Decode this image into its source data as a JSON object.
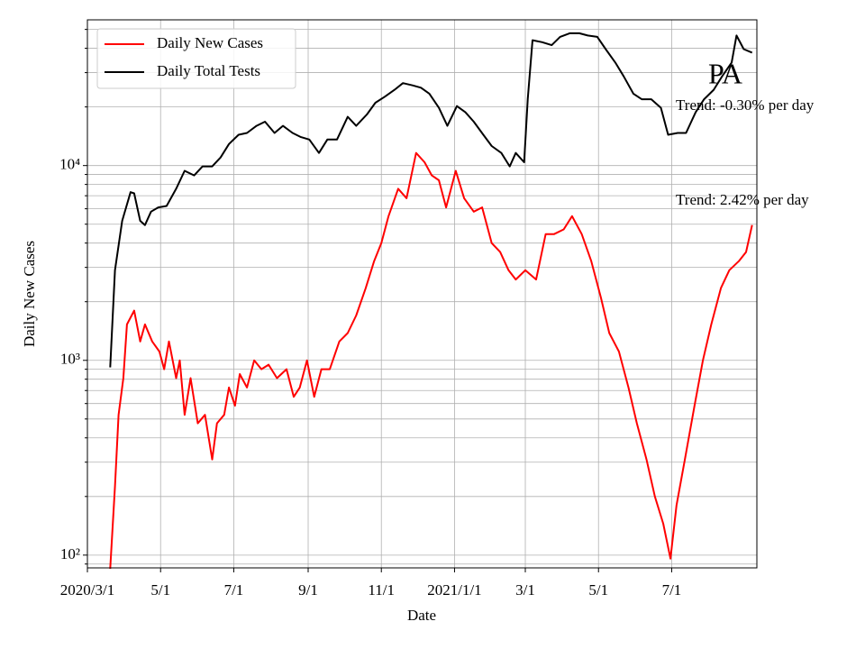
{
  "chart_data": {
    "type": "line",
    "title": "PA",
    "xlabel": "Date",
    "ylabel": "Daily New Cases",
    "annotations": [
      "Trend: -0.30% per day",
      "Trend: 2.42% per day"
    ],
    "log_y": true,
    "grid": true,
    "legend": "upper left",
    "xlim": [
      "2020-03-01",
      "2021-09-10"
    ],
    "xticks": [
      {
        "value": "2020-03-01",
        "label": "2020/3/1"
      },
      {
        "value": "2020-05-01",
        "label": "5/1"
      },
      {
        "value": "2020-07-01",
        "label": "7/1"
      },
      {
        "value": "2020-09-01",
        "label": "9/1"
      },
      {
        "value": "2020-11-01",
        "label": "11/1"
      },
      {
        "value": "2021-01-01",
        "label": "2021/1/1"
      },
      {
        "value": "2021-03-01",
        "label": "3/1"
      },
      {
        "value": "2021-05-01",
        "label": "5/1"
      },
      {
        "value": "2021-07-01",
        "label": "7/1"
      }
    ],
    "ylim": [
      86,
      56000
    ],
    "yticks": [
      {
        "value": 100,
        "label": "10²"
      },
      {
        "value": 1000,
        "label": "10³"
      },
      {
        "value": 10000,
        "label": "10⁴"
      }
    ],
    "yminor": [
      90,
      200,
      300,
      400,
      500,
      600,
      700,
      800,
      900,
      2000,
      3000,
      4000,
      5000,
      6000,
      7000,
      8000,
      9000,
      20000,
      30000,
      40000,
      50000
    ],
    "series": [
      {
        "name": "Daily New Cases",
        "color": "#ff0000",
        "x": [
          "2020-03-20",
          "2020-03-24",
          "2020-03-27",
          "2020-03-31",
          "2020-04-03",
          "2020-04-09",
          "2020-04-14",
          "2020-04-18",
          "2020-04-24",
          "2020-04-30",
          "2020-05-04",
          "2020-05-08",
          "2020-05-14",
          "2020-05-17",
          "2020-05-21",
          "2020-05-26",
          "2020-06-01",
          "2020-06-07",
          "2020-06-13",
          "2020-06-17",
          "2020-06-23",
          "2020-06-27",
          "2020-07-02",
          "2020-07-06",
          "2020-07-12",
          "2020-07-18",
          "2020-07-24",
          "2020-07-30",
          "2020-08-06",
          "2020-08-14",
          "2020-08-20",
          "2020-08-25",
          "2020-08-31",
          "2020-09-06",
          "2020-09-12",
          "2020-09-19",
          "2020-09-27",
          "2020-10-04",
          "2020-10-11",
          "2020-10-19",
          "2020-10-26",
          "2020-11-01",
          "2020-11-07",
          "2020-11-15",
          "2020-11-22",
          "2020-11-30",
          "2020-12-07",
          "2020-12-13",
          "2020-12-19",
          "2020-12-25",
          "2021-01-02",
          "2021-01-09",
          "2021-01-17",
          "2021-01-24",
          "2021-02-01",
          "2021-02-08",
          "2021-02-15",
          "2021-02-21",
          "2021-03-01",
          "2021-03-10",
          "2021-03-18",
          "2021-03-25",
          "2021-04-02",
          "2021-04-09",
          "2021-04-17",
          "2021-04-25",
          "2021-05-03",
          "2021-05-10",
          "2021-05-18",
          "2021-05-26",
          "2021-06-02",
          "2021-06-10",
          "2021-06-17",
          "2021-06-24",
          "2021-06-30",
          "2021-07-05",
          "2021-07-12",
          "2021-07-20",
          "2021-07-27",
          "2021-08-03",
          "2021-08-11",
          "2021-08-18",
          "2021-08-26",
          "2021-09-01",
          "2021-09-06"
        ],
        "values": [
          85,
          225,
          525,
          810,
          1530,
          1800,
          1250,
          1530,
          1250,
          1110,
          900,
          1250,
          810,
          1000,
          525,
          810,
          475,
          525,
          310,
          475,
          525,
          725,
          585,
          850,
          725,
          1000,
          900,
          950,
          810,
          900,
          650,
          725,
          1000,
          650,
          900,
          900,
          1250,
          1380,
          1700,
          2350,
          3230,
          4000,
          5500,
          7600,
          6800,
          11600,
          10400,
          8900,
          8400,
          6100,
          9400,
          6800,
          5800,
          6100,
          4000,
          3600,
          2900,
          2600,
          2900,
          2600,
          4450,
          4450,
          4700,
          5500,
          4450,
          3230,
          2100,
          1380,
          1110,
          725,
          475,
          310,
          200,
          145,
          96,
          180,
          310,
          585,
          1000,
          1530,
          2350,
          2900,
          3230,
          3600,
          4950
        ]
      },
      {
        "name": "Daily Total Tests",
        "color": "#000000",
        "x": [
          "2020-03-20",
          "2020-03-24",
          "2020-03-30",
          "2020-04-06",
          "2020-04-09",
          "2020-04-14",
          "2020-04-18",
          "2020-04-23",
          "2020-04-29",
          "2020-05-06",
          "2020-05-14",
          "2020-05-21",
          "2020-05-29",
          "2020-06-05",
          "2020-06-13",
          "2020-06-20",
          "2020-06-27",
          "2020-07-05",
          "2020-07-12",
          "2020-07-20",
          "2020-07-27",
          "2020-08-04",
          "2020-08-11",
          "2020-08-19",
          "2020-08-26",
          "2020-09-02",
          "2020-09-10",
          "2020-09-17",
          "2020-09-25",
          "2020-10-04",
          "2020-10-11",
          "2020-10-20",
          "2020-10-27",
          "2020-11-04",
          "2020-11-12",
          "2020-11-19",
          "2020-11-27",
          "2020-12-04",
          "2020-12-11",
          "2020-12-19",
          "2020-12-26",
          "2021-01-03",
          "2021-01-10",
          "2021-01-17",
          "2021-01-25",
          "2021-02-01",
          "2021-02-09",
          "2021-02-16",
          "2021-02-21",
          "2021-02-28",
          "2021-03-03",
          "2021-03-07",
          "2021-03-15",
          "2021-03-23",
          "2021-03-30",
          "2021-04-07",
          "2021-04-15",
          "2021-04-22",
          "2021-04-30",
          "2021-05-07",
          "2021-05-15",
          "2021-05-22",
          "2021-05-30",
          "2021-06-06",
          "2021-06-14",
          "2021-06-22",
          "2021-06-28",
          "2021-07-06",
          "2021-07-13",
          "2021-07-21",
          "2021-07-28",
          "2021-08-05",
          "2021-08-12",
          "2021-08-20",
          "2021-08-24",
          "2021-08-30",
          "2021-09-06"
        ],
        "values": [
          920,
          2900,
          5200,
          7300,
          7200,
          5200,
          4950,
          5800,
          6100,
          6200,
          7600,
          9400,
          8900,
          9900,
          9900,
          11000,
          12900,
          14400,
          14700,
          16000,
          16800,
          14700,
          16000,
          14700,
          14000,
          13600,
          11600,
          13600,
          13600,
          17800,
          16000,
          18300,
          21000,
          22600,
          24500,
          26500,
          25800,
          25100,
          23400,
          19800,
          16000,
          20200,
          18800,
          16800,
          14400,
          12600,
          11600,
          9900,
          11600,
          10400,
          21900,
          44000,
          43000,
          41500,
          45800,
          47800,
          47800,
          46500,
          45800,
          39600,
          33800,
          28700,
          23400,
          21900,
          21900,
          19800,
          14400,
          14700,
          14700,
          18800,
          21900,
          24500,
          28700,
          33800,
          46500,
          39600,
          38000
        ]
      }
    ]
  }
}
